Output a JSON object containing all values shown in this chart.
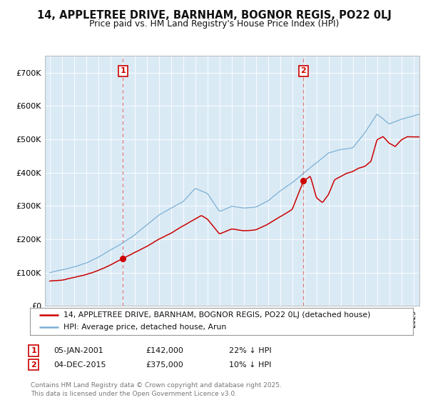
{
  "title": "14, APPLETREE DRIVE, BARNHAM, BOGNOR REGIS, PO22 0LJ",
  "subtitle": "Price paid vs. HM Land Registry's House Price Index (HPI)",
  "legend_label_red": "14, APPLETREE DRIVE, BARNHAM, BOGNOR REGIS, PO22 0LJ (detached house)",
  "legend_label_blue": "HPI: Average price, detached house, Arun",
  "annotation1_label": "1",
  "annotation1_date": "05-JAN-2001",
  "annotation1_price": "£142,000",
  "annotation1_hpi": "22% ↓ HPI",
  "annotation2_label": "2",
  "annotation2_date": "04-DEC-2015",
  "annotation2_price": "£375,000",
  "annotation2_hpi": "10% ↓ HPI",
  "footer": "Contains HM Land Registry data © Crown copyright and database right 2025.\nThis data is licensed under the Open Government Licence v3.0.",
  "red_color": "#cc0000",
  "blue_color": "#7ab0d4",
  "blue_fill_color": "#daeaf5",
  "annotation_line_color": "#e08080",
  "annotation_dot_color": "#cc0000",
  "background_color": "#ffffff",
  "grid_color": "#cccccc",
  "ylim": [
    0,
    750000
  ],
  "yticks": [
    0,
    100000,
    200000,
    300000,
    400000,
    500000,
    600000,
    700000
  ],
  "ytick_labels": [
    "£0",
    "£100K",
    "£200K",
    "£300K",
    "£400K",
    "£500K",
    "£600K",
    "£700K"
  ],
  "t1": 2001.04,
  "v1": 142000,
  "t2": 2015.92,
  "v2": 375000
}
